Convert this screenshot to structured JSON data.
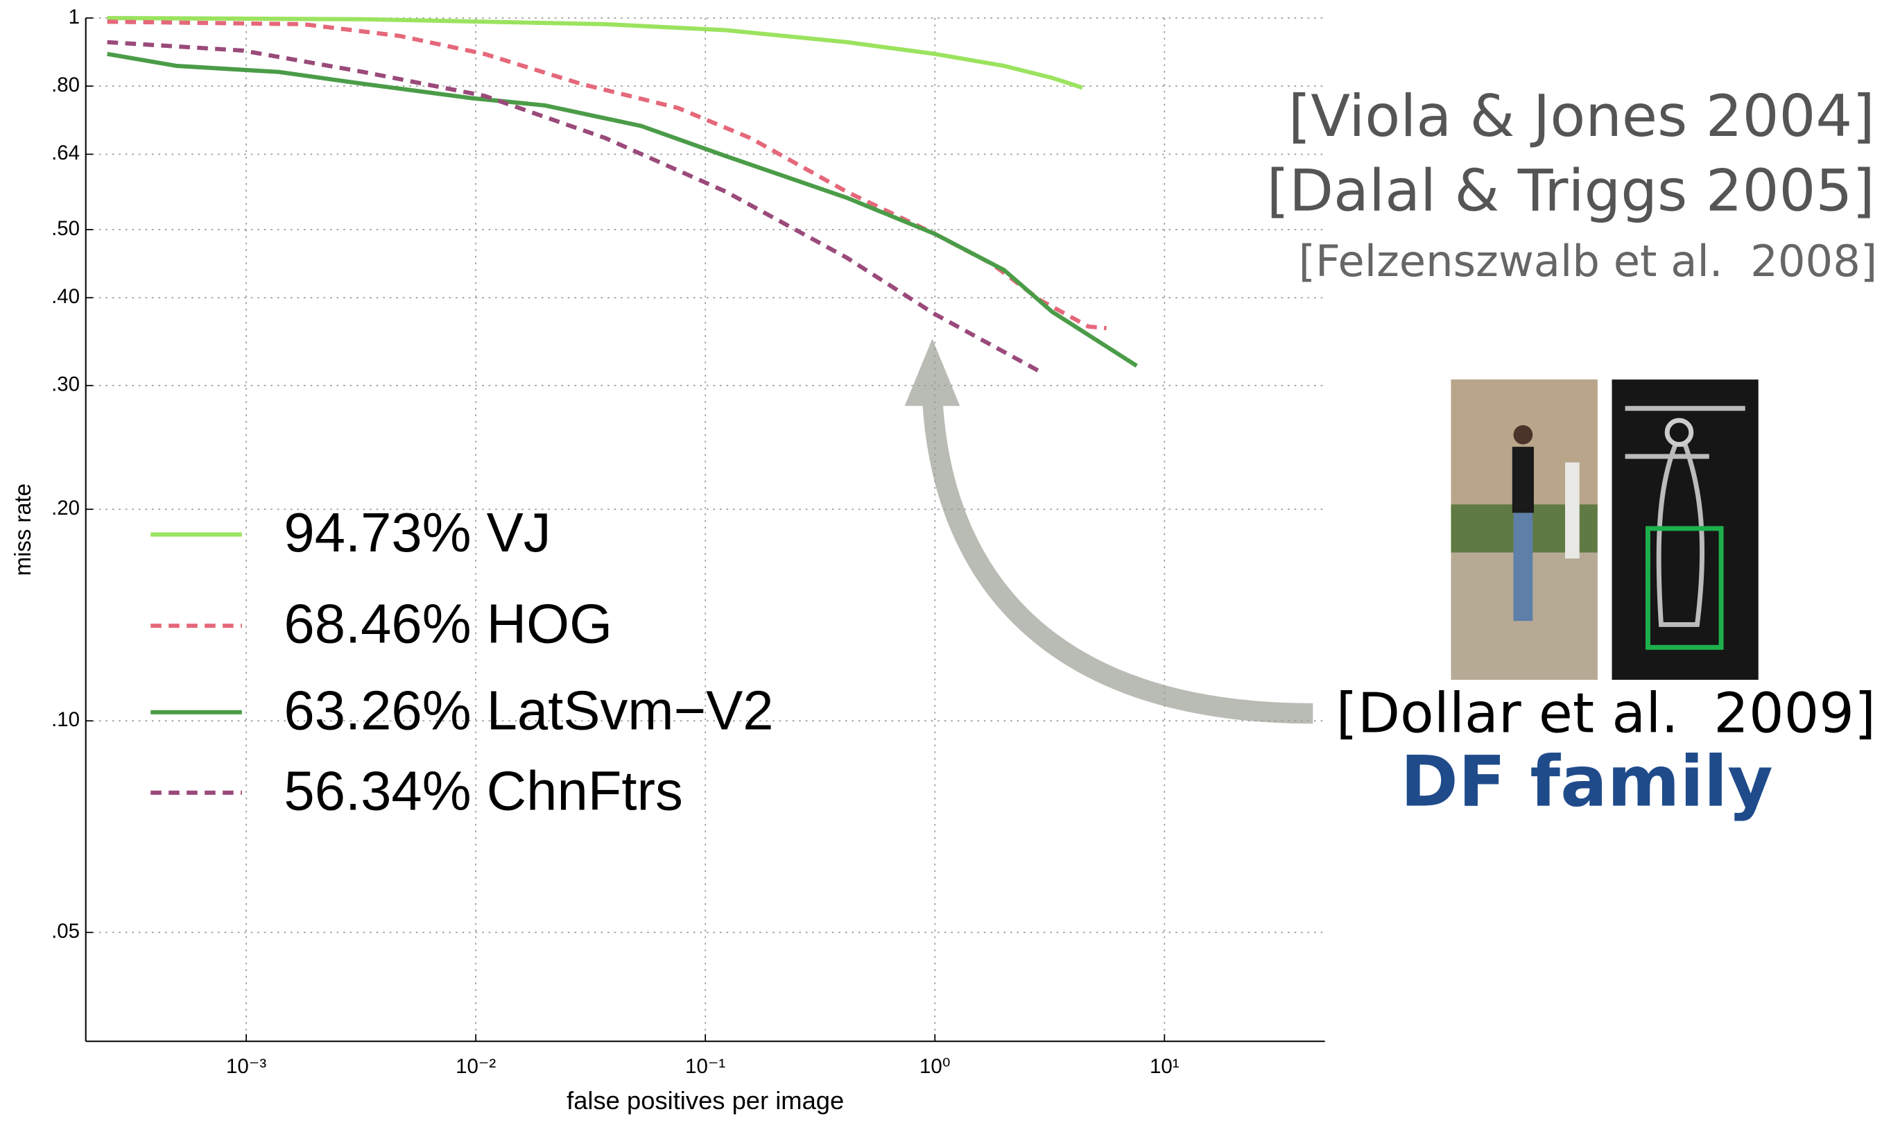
{
  "chart_data": {
    "type": "line",
    "xlabel": "false positives per image",
    "ylabel": "miss rate",
    "xlog": true,
    "ylog": true,
    "grid": true,
    "legend": "left",
    "xlim": [
      0.0002,
      50
    ],
    "ylim": [
      0.035,
      1
    ],
    "xticks": [
      {
        "value": 0.001,
        "label": "10⁻³"
      },
      {
        "value": 0.01,
        "label": "10⁻²"
      },
      {
        "value": 0.1,
        "label": "10⁻¹"
      },
      {
        "value": 1,
        "label": "10⁰"
      },
      {
        "value": 10,
        "label": "10¹"
      }
    ],
    "yticks": [
      1,
      {
        "value": 0.8,
        "label": ".80"
      },
      {
        "value": 0.64,
        "label": ".64"
      },
      {
        "value": 0.5,
        "label": ".50"
      },
      {
        "value": 0.4,
        "label": ".40"
      },
      {
        "value": 0.3,
        "label": ".30"
      },
      {
        "value": 0.2,
        "label": ".20"
      },
      {
        "value": 0.1,
        "label": ".10"
      },
      {
        "value": 0.05,
        "label": ".05"
      }
    ],
    "series": [
      {
        "name": "94.73% VJ",
        "color": "#9be35f",
        "dash": false,
        "x": [
          0.000248,
          0.00324,
          0.0366,
          0.123,
          0.413,
          1,
          2.0,
          3.24,
          4.39
        ],
        "values": [
          1,
          0.996,
          0.98,
          0.961,
          0.924,
          0.889,
          0.855,
          0.822,
          0.796
        ]
      },
      {
        "name": "68.46% HOG",
        "color": "#e5687a",
        "dash": true,
        "x": [
          0.000248,
          0.00177,
          0.00466,
          0.0109,
          0.0287,
          0.0757,
          0.157,
          0.413,
          1,
          1.77,
          2.87,
          4.66,
          5.59
        ],
        "values": [
          0.988,
          0.98,
          0.943,
          0.889,
          0.806,
          0.745,
          0.675,
          0.566,
          0.493,
          0.447,
          0.397,
          0.364,
          0.362
        ]
      },
      {
        "name": "63.26% LatSvm−V2",
        "color": "#4b9c48",
        "dash": false,
        "x": [
          0.000248,
          0.000495,
          0.00139,
          0.00324,
          0.00964,
          0.02,
          0.0526,
          0.123,
          0.413,
          1,
          2.0,
          3.24,
          7.57
        ],
        "values": [
          0.889,
          0.855,
          0.838,
          0.806,
          0.769,
          0.751,
          0.702,
          0.636,
          0.555,
          0.493,
          0.438,
          0.382,
          0.32
        ]
      },
      {
        "name": "56.34% ChnFtrs",
        "color": "#9a4a7a",
        "dash": true,
        "x": [
          0.000248,
          0.000964,
          0.00324,
          0.0109,
          0.0366,
          0.123,
          0.413,
          1,
          2.87
        ],
        "values": [
          0.924,
          0.899,
          0.838,
          0.775,
          0.675,
          0.566,
          0.456,
          0.379,
          0.314
        ]
      }
    ],
    "annotations": [
      "[Viola & Jones 2004]",
      "[Dalal & Triggs 2005]",
      "[Felzenszwalb et al.  2008]",
      "[Dollar et al.  2009]",
      "DF family"
    ]
  }
}
